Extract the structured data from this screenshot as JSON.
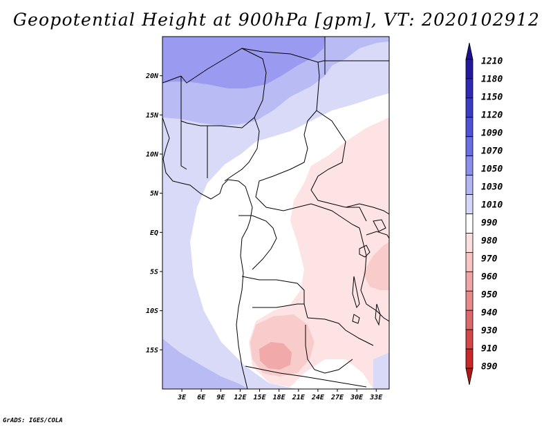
{
  "title": "Geopotential Height at 900hPa [gpm], VT: 2020102912",
  "credit": "GrADS: IGES/COLA",
  "map": {
    "lon_range": [
      0,
      35
    ],
    "lat_range": [
      -20,
      25
    ],
    "lat_ticks": [
      {
        "value": 20,
        "label": "20N"
      },
      {
        "value": 15,
        "label": "15N"
      },
      {
        "value": 10,
        "label": "10N"
      },
      {
        "value": 5,
        "label": "5N"
      },
      {
        "value": 0,
        "label": "EQ"
      },
      {
        "value": -5,
        "label": "5S"
      },
      {
        "value": -10,
        "label": "10S"
      },
      {
        "value": -15,
        "label": "15S"
      }
    ],
    "lon_ticks": [
      {
        "value": 3,
        "label": "3E"
      },
      {
        "value": 6,
        "label": "6E"
      },
      {
        "value": 9,
        "label": "9E"
      },
      {
        "value": 12,
        "label": "12E"
      },
      {
        "value": 15,
        "label": "15E"
      },
      {
        "value": 18,
        "label": "18E"
      },
      {
        "value": 21,
        "label": "21E"
      },
      {
        "value": 24,
        "label": "24E"
      },
      {
        "value": 27,
        "label": "27E"
      },
      {
        "value": 30,
        "label": "30E"
      },
      {
        "value": 33,
        "label": "33E"
      }
    ]
  },
  "colorbar": {
    "levels": [
      "1210",
      "1180",
      "1150",
      "1120",
      "1090",
      "1070",
      "1050",
      "1030",
      "1010",
      "990",
      "980",
      "970",
      "960",
      "950",
      "940",
      "930",
      "910",
      "890"
    ],
    "colors": [
      "#1a1290",
      "#231aa0",
      "#2e2ab3",
      "#3b3cc4",
      "#4f52d4",
      "#6a6ee0",
      "#8c8eec",
      "#b4b6f2",
      "#d6d8fa",
      "#ffffff",
      "#fce0e0",
      "#f8c4c4",
      "#f0a6a6",
      "#e68a8a",
      "#dc6a6a",
      "#d44848",
      "#c82828",
      "#b01818"
    ]
  },
  "palette": {
    "band_1050": "#9a9af0",
    "band_1030": "#b9bbf4",
    "band_1010": "#d8daf8",
    "band_990": "#ffffff",
    "band_980": "#fde3e3",
    "band_970": "#f9cccc",
    "band_960": "#f1a9a9"
  }
}
